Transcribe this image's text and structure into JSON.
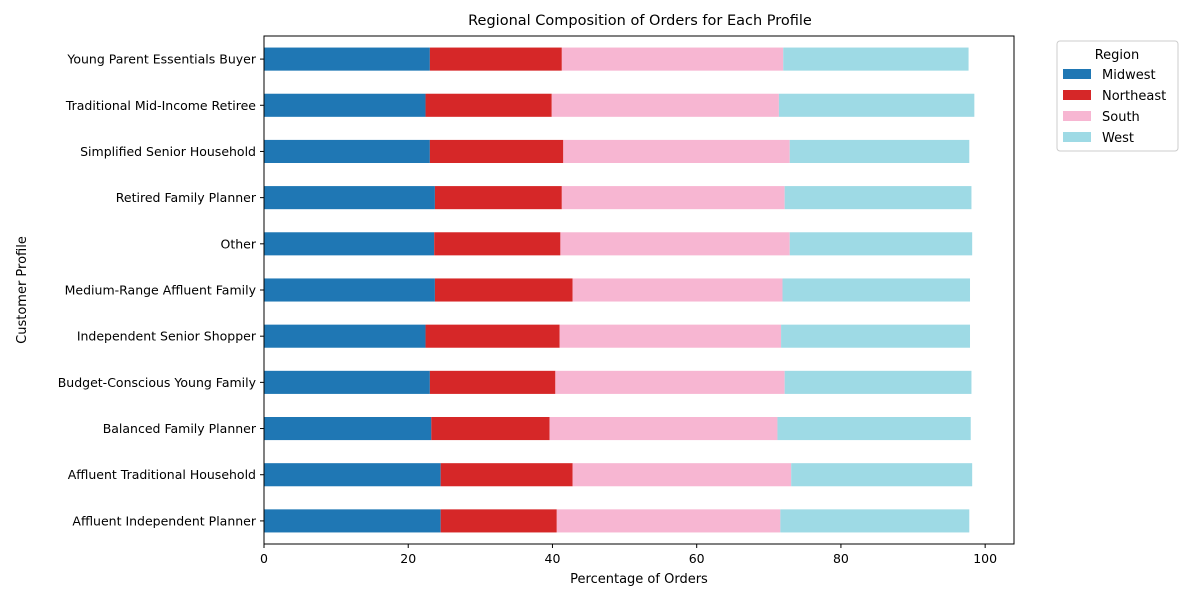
{
  "chart_data": {
    "type": "bar",
    "orientation": "horizontal",
    "stacked": true,
    "title": "Regional Composition of Orders for Each Profile",
    "xlabel": "Percentage of Orders",
    "ylabel": "Customer Profile",
    "xlim": [
      0,
      104
    ],
    "xticks": [
      0,
      20,
      40,
      60,
      80,
      100
    ],
    "grid": false,
    "legend": {
      "title": "Region",
      "placement": "outside-top-right"
    },
    "categories": [
      "Affluent Independent Planner",
      "Affluent Traditional Household",
      "Balanced Family Planner",
      "Budget-Conscious Young Family",
      "Independent Senior Shopper",
      "Medium-Range Affluent Family",
      "Other",
      "Retired Family Planner",
      "Simplified Senior Household",
      "Traditional Mid-Income Retiree",
      "Young Parent Essentials Buyer"
    ],
    "series": [
      {
        "name": "Midwest",
        "color": "#1f77b4",
        "values": [
          24.5,
          24.5,
          23.2,
          23.0,
          22.4,
          23.7,
          23.6,
          23.7,
          23.0,
          22.4,
          23.0
        ]
      },
      {
        "name": "Northeast",
        "color": "#d62728",
        "values": [
          16.1,
          18.3,
          16.4,
          17.4,
          18.6,
          19.1,
          17.5,
          17.6,
          18.5,
          17.5,
          18.3
        ]
      },
      {
        "name": "South",
        "color": "#f7b6d2",
        "values": [
          31.0,
          30.3,
          31.6,
          31.8,
          30.7,
          29.1,
          31.8,
          30.9,
          31.4,
          31.5,
          30.7
        ]
      },
      {
        "name": "West",
        "color": "#9edae5",
        "values": [
          26.2,
          25.1,
          26.8,
          25.9,
          26.2,
          26.0,
          25.3,
          25.9,
          24.9,
          27.1,
          25.7
        ]
      }
    ]
  }
}
